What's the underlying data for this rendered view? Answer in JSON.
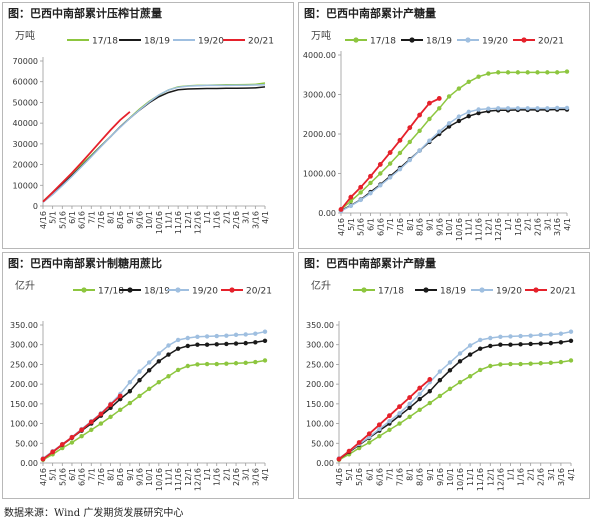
{
  "source": "数据来源：Wind  广发期货发展研究中心",
  "colors": {
    "s1718": "#8dc63f",
    "s1819": "#1a1a1a",
    "s1920": "#9fbfe0",
    "s2021": "#e5212b"
  },
  "x_labels": [
    "4/16",
    "5/1",
    "5/16",
    "6/1",
    "6/16",
    "7/1",
    "7/16",
    "8/1",
    "8/16",
    "9/1",
    "9/16",
    "10/1",
    "10/16",
    "11/1",
    "11/16",
    "12/1",
    "12/16",
    "1/1",
    "1/16",
    "2/1",
    "2/16",
    "3/1",
    "3/16",
    "4/1"
  ],
  "chart_data": [
    {
      "type": "line",
      "title": "图：巴西中南部累计压榨甘蔗量",
      "unit": "万吨",
      "markers": false,
      "ylim": [
        0,
        70000
      ],
      "yticks": [
        "0",
        "10000",
        "20000",
        "30000",
        "40000",
        "50000",
        "60000",
        "70000"
      ],
      "series": [
        {
          "name": "17/18",
          "color_key": "s1718",
          "values": [
            2200,
            6600,
            11000,
            15500,
            20000,
            24500,
            29000,
            33500,
            38200,
            42600,
            46800,
            50500,
            53500,
            56000,
            57500,
            58000,
            58200,
            58300,
            58400,
            58500,
            58500,
            58600,
            58700,
            59400
          ]
        },
        {
          "name": "18/19",
          "color_key": "s1819",
          "values": [
            2000,
            6000,
            10300,
            14700,
            19200,
            24000,
            28800,
            33500,
            38200,
            42400,
            46300,
            49800,
            52700,
            54800,
            56100,
            56500,
            56600,
            56700,
            56700,
            56800,
            56800,
            56900,
            57000,
            57500
          ]
        },
        {
          "name": "19/20",
          "color_key": "s1920",
          "values": [
            1800,
            5500,
            9800,
            14300,
            19000,
            23800,
            28700,
            33500,
            38000,
            42400,
            46400,
            50200,
            53600,
            56000,
            57300,
            57900,
            58100,
            58200,
            58200,
            58200,
            58300,
            58300,
            58400,
            58500
          ]
        },
        {
          "name": "20/21",
          "color_key": "s2021",
          "values": [
            2100,
            6600,
            11300,
            16000,
            21000,
            26200,
            31500,
            36700,
            41500,
            45500
          ]
        }
      ]
    },
    {
      "type": "line",
      "title": "图：巴西中南部累计产糖量",
      "unit": "万吨",
      "markers": true,
      "ylim": [
        0,
        4000
      ],
      "yticks": [
        "0.00",
        "1000.00",
        "2000.00",
        "3000.00",
        "4000.00"
      ],
      "series": [
        {
          "name": "17/18",
          "color_key": "s1718",
          "values": [
            90,
            300,
            520,
            760,
            1000,
            1250,
            1520,
            1800,
            2080,
            2380,
            2650,
            2950,
            3150,
            3320,
            3450,
            3530,
            3560,
            3560,
            3560,
            3560,
            3560,
            3560,
            3560,
            3580
          ]
        },
        {
          "name": "18/19",
          "color_key": "s1819",
          "values": [
            60,
            190,
            340,
            530,
            720,
            930,
            1140,
            1360,
            1580,
            1800,
            2000,
            2190,
            2330,
            2450,
            2530,
            2580,
            2600,
            2600,
            2610,
            2610,
            2610,
            2610,
            2620,
            2620
          ]
        },
        {
          "name": "19/20",
          "color_key": "s1920",
          "values": [
            50,
            180,
            330,
            500,
            700,
            900,
            1110,
            1340,
            1580,
            1830,
            2060,
            2270,
            2440,
            2560,
            2620,
            2640,
            2650,
            2650,
            2650,
            2650,
            2650,
            2650,
            2660,
            2660
          ]
        },
        {
          "name": "20/21",
          "color_key": "s2021",
          "values": [
            90,
            400,
            650,
            930,
            1230,
            1530,
            1840,
            2160,
            2480,
            2780,
            2900
          ]
        }
      ]
    },
    {
      "type": "line",
      "title": "图：巴西中南部累计制糖用蔗比",
      "unit": "亿升",
      "markers": true,
      "ylim": [
        0,
        350
      ],
      "yticks": [
        "0.00",
        "50.00",
        "100.00",
        "150.00",
        "200.00",
        "250.00",
        "300.00",
        "350.00"
      ],
      "series": [
        {
          "name": "17/18",
          "color_key": "s1718",
          "values": [
            8,
            22,
            38,
            52,
            68,
            84,
            100,
            117,
            135,
            152,
            170,
            188,
            205,
            220,
            236,
            246,
            250,
            251,
            251,
            252,
            253,
            254,
            256,
            260
          ]
        },
        {
          "name": "18/19",
          "color_key": "s1819",
          "values": [
            10,
            28,
            46,
            64,
            82,
            100,
            120,
            140,
            162,
            182,
            210,
            235,
            258,
            275,
            290,
            297,
            300,
            300,
            301,
            302,
            303,
            304,
            306,
            310
          ]
        },
        {
          "name": "19/20",
          "color_key": "s1920",
          "values": [
            12,
            30,
            48,
            66,
            86,
            106,
            126,
            150,
            175,
            205,
            232,
            255,
            278,
            298,
            312,
            317,
            320,
            321,
            322,
            323,
            325,
            326,
            328,
            333
          ]
        },
        {
          "name": "20/21",
          "color_key": "s2021",
          "values": [
            10,
            28,
            47,
            65,
            84,
            104,
            124,
            148,
            170
          ]
        }
      ]
    },
    {
      "type": "line",
      "title": "图：巴西中南部累计产醇量",
      "unit": "亿升",
      "markers": true,
      "ylim": [
        0,
        350
      ],
      "yticks": [
        "0.00",
        "50.00",
        "100.00",
        "150.00",
        "200.00",
        "250.00",
        "300.00",
        "350.00"
      ],
      "series": [
        {
          "name": "17/18",
          "color_key": "s1718",
          "values": [
            8,
            22,
            38,
            52,
            68,
            84,
            100,
            117,
            135,
            152,
            170,
            188,
            205,
            220,
            236,
            246,
            250,
            251,
            251,
            252,
            253,
            254,
            256,
            260
          ]
        },
        {
          "name": "18/19",
          "color_key": "s1819",
          "values": [
            10,
            28,
            46,
            64,
            82,
            100,
            120,
            140,
            162,
            182,
            210,
            235,
            258,
            275,
            290,
            297,
            300,
            300,
            301,
            302,
            303,
            304,
            306,
            310
          ]
        },
        {
          "name": "19/20",
          "color_key": "s1920",
          "values": [
            12,
            30,
            48,
            66,
            86,
            106,
            126,
            150,
            175,
            205,
            232,
            255,
            278,
            298,
            312,
            317,
            320,
            321,
            322,
            323,
            325,
            326,
            328,
            333
          ]
        },
        {
          "name": "20/21",
          "color_key": "s2021",
          "values": [
            10,
            30,
            52,
            74,
            97,
            120,
            143,
            166,
            190,
            212
          ]
        }
      ]
    }
  ]
}
